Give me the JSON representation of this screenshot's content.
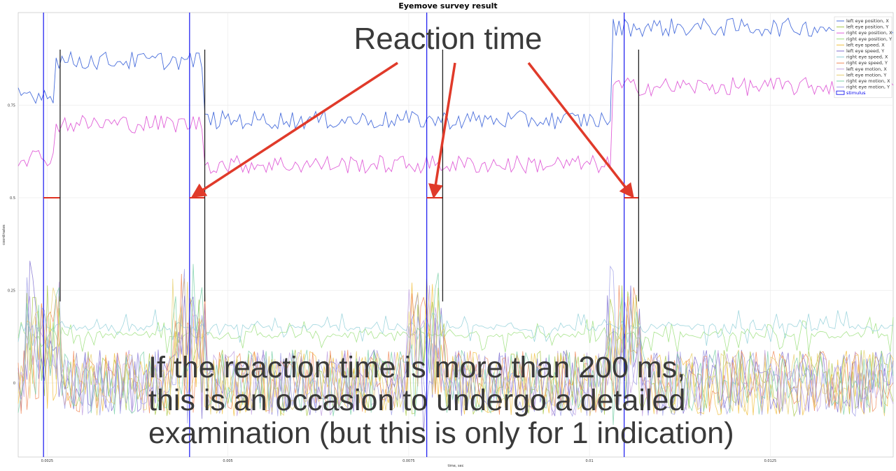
{
  "chart_data": {
    "type": "line",
    "title": "Eyemove survey result",
    "xlabel": "time, sec",
    "ylabel": "coordinates",
    "xlim": [
      0.0021,
      0.0142
    ],
    "ylim": [
      -0.2,
      1.0
    ],
    "x_ticks": [
      {
        "value": 0.0025,
        "label": "0.0025"
      },
      {
        "value": 0.005,
        "label": "0.005"
      },
      {
        "value": 0.0075,
        "label": "0.0075"
      },
      {
        "value": 0.01,
        "label": "0.01"
      },
      {
        "value": 0.0125,
        "label": "0.0125"
      }
    ],
    "y_ticks": [
      {
        "value": 0,
        "label": "0"
      },
      {
        "value": 0.25,
        "label": "0.25"
      },
      {
        "value": 0.5,
        "label": "0.5"
      },
      {
        "value": 0.75,
        "label": "0.75"
      }
    ],
    "grid": true,
    "legend_position": "top-right",
    "series": [
      {
        "name": "left eye position, X",
        "color": "#4a6fdc",
        "level_segments": [
          [
            0.0021,
            0.0026,
            0.78
          ],
          [
            0.0026,
            0.00465,
            0.87
          ],
          [
            0.00465,
            0.0103,
            0.71
          ],
          [
            0.0103,
            0.0142,
            0.96
          ]
        ]
      },
      {
        "name": "left eye position, Y",
        "color": "#a8c84a"
      },
      {
        "name": "right eye position, X",
        "color": "#e060d8",
        "level_segments": [
          [
            0.0021,
            0.0026,
            0.61
          ],
          [
            0.0026,
            0.00465,
            0.7
          ],
          [
            0.00465,
            0.0103,
            0.59
          ],
          [
            0.0103,
            0.0142,
            0.8
          ]
        ]
      },
      {
        "name": "right eye position, Y",
        "color": "#9adf7a",
        "baseline": 0.13
      },
      {
        "name": "left eye speed, X",
        "color": "#f2c040"
      },
      {
        "name": "left eye speed, Y",
        "color": "#7f6fd0"
      },
      {
        "name": "right eye speed, X",
        "color": "#8fcfd8",
        "baseline": 0.15
      },
      {
        "name": "right eye speed, Y",
        "color": "#f08a5a"
      },
      {
        "name": "left eye motion, X",
        "color": "#c0a0e0"
      },
      {
        "name": "left eye motion, Y",
        "color": "#e8d070"
      },
      {
        "name": "right eye motion, X",
        "color": "#7ad0a8"
      },
      {
        "name": "right eye motion, Y",
        "color": "#a0a0e8"
      },
      {
        "name": "stimulus",
        "color": "#0000ee",
        "event_times": [
          0.00245,
          0.00447,
          0.00775,
          0.01048
        ]
      }
    ],
    "reaction_times": [
      {
        "start": 0.00245,
        "end": 0.00268
      },
      {
        "start": 0.00447,
        "end": 0.00468
      },
      {
        "start": 0.00775,
        "end": 0.00797
      },
      {
        "start": 0.01048,
        "end": 0.01068
      }
    ],
    "annotations": {
      "reaction_label": "Reaction time",
      "note_lines": [
        "If the reaction time is more than 200 ms,",
        "this is an occasion to undergo a detailed",
        "examination (but this is only for 1 indication)"
      ]
    }
  }
}
